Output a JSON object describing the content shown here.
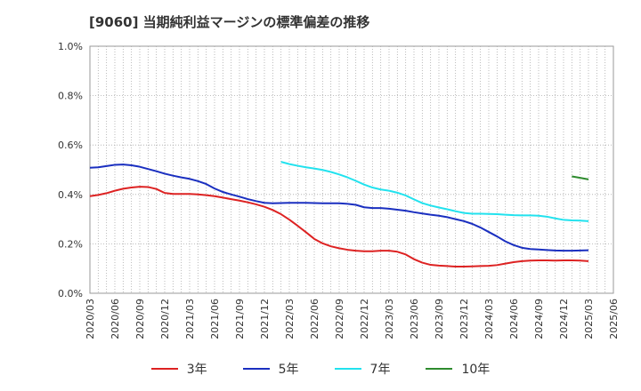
{
  "chart_data": {
    "type": "line",
    "title": "[9060]  当期純利益マージンの標準偏差の推移",
    "xlabel": "",
    "ylabel": "",
    "ylim": [
      0,
      0.01
    ],
    "yticks": [
      0,
      0.002,
      0.004,
      0.006,
      0.008,
      0.01
    ],
    "ytick_labels": [
      "0.0%",
      "0.2%",
      "0.4%",
      "0.6%",
      "0.8%",
      "1.0%"
    ],
    "x_range": [
      "2020/03",
      "2025/06"
    ],
    "xtick_labels": [
      "2020/03",
      "2020/06",
      "2020/09",
      "2020/12",
      "2021/03",
      "2021/06",
      "2021/09",
      "2021/12",
      "2022/03",
      "2022/06",
      "2022/09",
      "2022/12",
      "2023/03",
      "2023/06",
      "2023/09",
      "2023/12",
      "2024/03",
      "2024/06",
      "2024/09",
      "2024/12",
      "2025/03",
      "2025/06"
    ],
    "grid": true,
    "legend_position": "bottom",
    "series": [
      {
        "name": "3年",
        "color": "#dd2222",
        "points": [
          [
            "2020/03",
            0.00393
          ],
          [
            "2020/04",
            0.00398
          ],
          [
            "2020/05",
            0.00405
          ],
          [
            "2020/06",
            0.00415
          ],
          [
            "2020/07",
            0.00423
          ],
          [
            "2020/08",
            0.00428
          ],
          [
            "2020/09",
            0.00431
          ],
          [
            "2020/10",
            0.0043
          ],
          [
            "2020/11",
            0.00422
          ],
          [
            "2020/12",
            0.00406
          ],
          [
            "2021/01",
            0.00402
          ],
          [
            "2021/02",
            0.00402
          ],
          [
            "2021/03",
            0.00402
          ],
          [
            "2021/04",
            0.004
          ],
          [
            "2021/05",
            0.00397
          ],
          [
            "2021/06",
            0.00393
          ],
          [
            "2021/07",
            0.00387
          ],
          [
            "2021/08",
            0.00381
          ],
          [
            "2021/09",
            0.00375
          ],
          [
            "2021/10",
            0.00368
          ],
          [
            "2021/11",
            0.0036
          ],
          [
            "2021/12",
            0.0035
          ],
          [
            "2022/01",
            0.00337
          ],
          [
            "2022/02",
            0.0032
          ],
          [
            "2022/03",
            0.00298
          ],
          [
            "2022/04",
            0.00273
          ],
          [
            "2022/05",
            0.00247
          ],
          [
            "2022/06",
            0.0022
          ],
          [
            "2022/07",
            0.00202
          ],
          [
            "2022/08",
            0.0019
          ],
          [
            "2022/09",
            0.00182
          ],
          [
            "2022/10",
            0.00176
          ],
          [
            "2022/11",
            0.00172
          ],
          [
            "2022/12",
            0.0017
          ],
          [
            "2023/01",
            0.0017
          ],
          [
            "2023/02",
            0.00172
          ],
          [
            "2023/03",
            0.00172
          ],
          [
            "2023/04",
            0.00168
          ],
          [
            "2023/05",
            0.00157
          ],
          [
            "2023/06",
            0.00138
          ],
          [
            "2023/07",
            0.00124
          ],
          [
            "2023/08",
            0.00115
          ],
          [
            "2023/09",
            0.00112
          ],
          [
            "2023/10",
            0.0011
          ],
          [
            "2023/11",
            0.00108
          ],
          [
            "2023/12",
            0.00108
          ],
          [
            "2024/01",
            0.00109
          ],
          [
            "2024/02",
            0.0011
          ],
          [
            "2024/03",
            0.00111
          ],
          [
            "2024/04",
            0.00114
          ],
          [
            "2024/05",
            0.0012
          ],
          [
            "2024/06",
            0.00126
          ],
          [
            "2024/07",
            0.0013
          ],
          [
            "2024/08",
            0.00132
          ],
          [
            "2024/09",
            0.00133
          ],
          [
            "2024/10",
            0.00133
          ],
          [
            "2024/11",
            0.00132
          ],
          [
            "2024/12",
            0.00133
          ],
          [
            "2025/01",
            0.00133
          ],
          [
            "2025/02",
            0.00132
          ],
          [
            "2025/03",
            0.0013
          ]
        ]
      },
      {
        "name": "5年",
        "color": "#1a2fc0",
        "points": [
          [
            "2020/03",
            0.00508
          ],
          [
            "2020/04",
            0.0051
          ],
          [
            "2020/05",
            0.00515
          ],
          [
            "2020/06",
            0.0052
          ],
          [
            "2020/07",
            0.00521
          ],
          [
            "2020/08",
            0.00518
          ],
          [
            "2020/09",
            0.00512
          ],
          [
            "2020/10",
            0.00503
          ],
          [
            "2020/11",
            0.00494
          ],
          [
            "2020/12",
            0.00484
          ],
          [
            "2021/01",
            0.00476
          ],
          [
            "2021/02",
            0.00469
          ],
          [
            "2021/03",
            0.00463
          ],
          [
            "2021/04",
            0.00454
          ],
          [
            "2021/05",
            0.00442
          ],
          [
            "2021/06",
            0.00424
          ],
          [
            "2021/07",
            0.0041
          ],
          [
            "2021/08",
            0.004
          ],
          [
            "2021/09",
            0.00391
          ],
          [
            "2021/10",
            0.00381
          ],
          [
            "2021/11",
            0.00373
          ],
          [
            "2021/12",
            0.00366
          ],
          [
            "2022/01",
            0.00364
          ],
          [
            "2022/02",
            0.00365
          ],
          [
            "2022/03",
            0.00366
          ],
          [
            "2022/04",
            0.00366
          ],
          [
            "2022/05",
            0.00366
          ],
          [
            "2022/06",
            0.00365
          ],
          [
            "2022/07",
            0.00364
          ],
          [
            "2022/08",
            0.00364
          ],
          [
            "2022/09",
            0.00364
          ],
          [
            "2022/10",
            0.00362
          ],
          [
            "2022/11",
            0.00358
          ],
          [
            "2022/12",
            0.00348
          ],
          [
            "2023/01",
            0.00345
          ],
          [
            "2023/02",
            0.00345
          ],
          [
            "2023/03",
            0.00342
          ],
          [
            "2023/04",
            0.00338
          ],
          [
            "2023/05",
            0.00334
          ],
          [
            "2023/06",
            0.00328
          ],
          [
            "2023/07",
            0.00323
          ],
          [
            "2023/08",
            0.00318
          ],
          [
            "2023/09",
            0.00314
          ],
          [
            "2023/10",
            0.00308
          ],
          [
            "2023/11",
            0.003
          ],
          [
            "2023/12",
            0.00292
          ],
          [
            "2024/01",
            0.00281
          ],
          [
            "2024/02",
            0.00266
          ],
          [
            "2024/03",
            0.00248
          ],
          [
            "2024/04",
            0.0023
          ],
          [
            "2024/05",
            0.0021
          ],
          [
            "2024/06",
            0.00195
          ],
          [
            "2024/07",
            0.00184
          ],
          [
            "2024/08",
            0.00179
          ],
          [
            "2024/09",
            0.00177
          ],
          [
            "2024/10",
            0.00175
          ],
          [
            "2024/11",
            0.00173
          ],
          [
            "2024/12",
            0.00172
          ],
          [
            "2025/01",
            0.00172
          ],
          [
            "2025/02",
            0.00173
          ],
          [
            "2025/03",
            0.00174
          ]
        ]
      },
      {
        "name": "7年",
        "color": "#22e2ee",
        "points": [
          [
            "2022/02",
            0.00532
          ],
          [
            "2022/03",
            0.00523
          ],
          [
            "2022/04",
            0.00516
          ],
          [
            "2022/05",
            0.0051
          ],
          [
            "2022/06",
            0.00505
          ],
          [
            "2022/07",
            0.00499
          ],
          [
            "2022/08",
            0.00491
          ],
          [
            "2022/09",
            0.00481
          ],
          [
            "2022/10",
            0.00469
          ],
          [
            "2022/11",
            0.00455
          ],
          [
            "2022/12",
            0.0044
          ],
          [
            "2023/01",
            0.00428
          ],
          [
            "2023/02",
            0.0042
          ],
          [
            "2023/03",
            0.00415
          ],
          [
            "2023/04",
            0.00407
          ],
          [
            "2023/05",
            0.00396
          ],
          [
            "2023/06",
            0.0038
          ],
          [
            "2023/07",
            0.00365
          ],
          [
            "2023/08",
            0.00355
          ],
          [
            "2023/09",
            0.00347
          ],
          [
            "2023/10",
            0.0034
          ],
          [
            "2023/11",
            0.00332
          ],
          [
            "2023/12",
            0.00325
          ],
          [
            "2024/01",
            0.00322
          ],
          [
            "2024/02",
            0.00322
          ],
          [
            "2024/03",
            0.00321
          ],
          [
            "2024/04",
            0.0032
          ],
          [
            "2024/05",
            0.00318
          ],
          [
            "2024/06",
            0.00316
          ],
          [
            "2024/07",
            0.00315
          ],
          [
            "2024/08",
            0.00315
          ],
          [
            "2024/09",
            0.00314
          ],
          [
            "2024/10",
            0.0031
          ],
          [
            "2024/11",
            0.00303
          ],
          [
            "2024/12",
            0.00297
          ],
          [
            "2025/01",
            0.00295
          ],
          [
            "2025/02",
            0.00294
          ],
          [
            "2025/03",
            0.00292
          ]
        ]
      },
      {
        "name": "10年",
        "color": "#2e8b2e",
        "points": [
          [
            "2025/01",
            0.00473
          ],
          [
            "2025/02",
            0.00467
          ],
          [
            "2025/03",
            0.00461
          ]
        ]
      }
    ]
  }
}
